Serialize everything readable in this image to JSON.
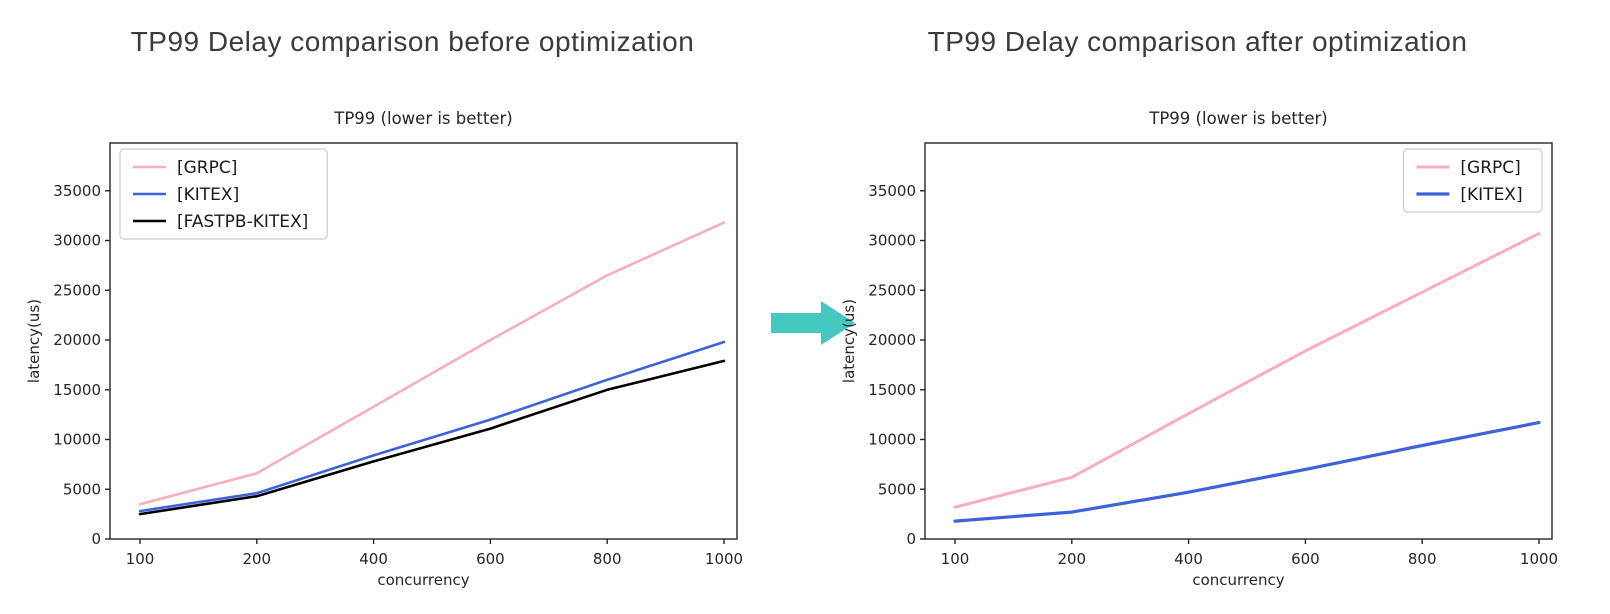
{
  "page": {
    "background": "#ffffff"
  },
  "headers": {
    "before": "TP99 Delay comparison before optimization",
    "after": "TP99 Delay comparison after optimization"
  },
  "arrow": {
    "label": "right-arrow",
    "color": "#44C8BF"
  },
  "colors": {
    "grpc": "#F8AEBE",
    "kitex": "#3E62DC",
    "fastpb_kitex": "#000000",
    "axis_text": "#262626",
    "spine": "#262626",
    "legend_border": "#cccccc",
    "header_text": "#3b3b3b"
  },
  "chart_data": [
    {
      "id": "before",
      "type": "line",
      "title": "TP99 (lower is better)",
      "xlabel": "concurrency",
      "ylabel": "latency(us)",
      "categories": [
        100,
        200,
        400,
        600,
        800,
        1000
      ],
      "series": [
        {
          "name": "[GRPC]",
          "color": "#F8AEBE",
          "linewidth": 2.6,
          "values": [
            3500,
            6600,
            13300,
            20000,
            26500,
            31800
          ]
        },
        {
          "name": "[KITEX]",
          "color": "#3E62DC",
          "linewidth": 2.6,
          "values": [
            2800,
            4600,
            8400,
            12000,
            16000,
            19800
          ]
        },
        {
          "name": "[FASTPB-KITEX]",
          "color": "#000000",
          "linewidth": 2.6,
          "values": [
            2500,
            4300,
            7800,
            11100,
            15000,
            17900
          ]
        }
      ],
      "ylim": [
        0,
        39800
      ],
      "yticks": [
        0,
        5000,
        10000,
        15000,
        20000,
        25000,
        30000,
        35000
      ],
      "grid": false,
      "legend_position": "upper-left"
    },
    {
      "id": "after",
      "type": "line",
      "title": "TP99 (lower is better)",
      "xlabel": "concurrency",
      "ylabel": "latency(us)",
      "categories": [
        100,
        200,
        400,
        600,
        800,
        1000
      ],
      "series": [
        {
          "name": "[GRPC]",
          "color": "#F8AEBE",
          "linewidth": 3.0,
          "values": [
            3200,
            6200,
            12600,
            18900,
            24800,
            30700
          ]
        },
        {
          "name": "[KITEX]",
          "color": "#3E62DC",
          "linewidth": 3.2,
          "values": [
            1800,
            2700,
            4700,
            7000,
            9400,
            11700
          ]
        }
      ],
      "ylim": [
        0,
        39800
      ],
      "yticks": [
        0,
        5000,
        10000,
        15000,
        20000,
        25000,
        30000,
        35000
      ],
      "grid": false,
      "legend_position": "upper-right"
    }
  ]
}
